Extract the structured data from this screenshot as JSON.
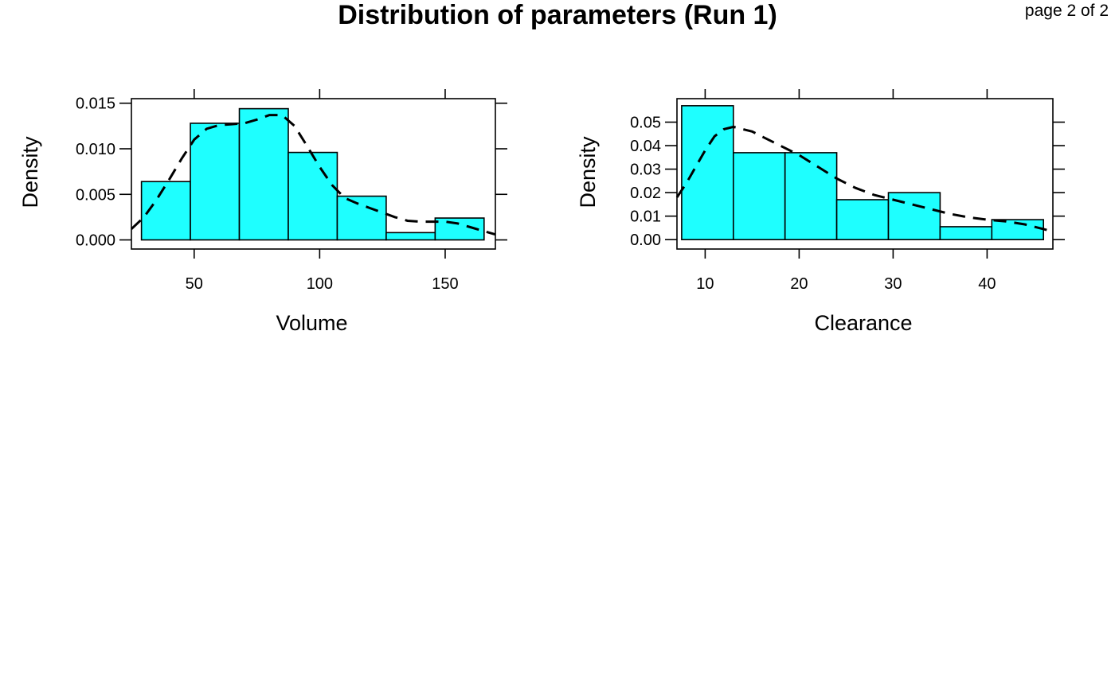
{
  "title": "Distribution of parameters (Run 1)",
  "page_label": "page 2 of 2",
  "colors": {
    "bar_fill": "#1EFFFF",
    "line": "#000000"
  },
  "chart_data": [
    {
      "type": "bar",
      "subtype": "histogram-with-density",
      "xlabel": "Volume",
      "ylabel": "Density",
      "xlim": [
        25,
        170
      ],
      "ylim": [
        -0.001,
        0.0155
      ],
      "xticks": [
        50,
        100,
        150
      ],
      "xtick_labels": [
        "50",
        "100",
        "150"
      ],
      "yticks": [
        0,
        0.005,
        0.01,
        0.015
      ],
      "ytick_labels": [
        "0.000",
        "0.005",
        "0.010",
        "0.015"
      ],
      "bins": [
        {
          "x0": 29,
          "x1": 48.5,
          "value": 0.0064
        },
        {
          "x0": 48.5,
          "x1": 68,
          "value": 0.0128
        },
        {
          "x0": 68,
          "x1": 87.5,
          "value": 0.0144
        },
        {
          "x0": 87.5,
          "x1": 107,
          "value": 0.0096
        },
        {
          "x0": 107,
          "x1": 126.5,
          "value": 0.0048
        },
        {
          "x0": 126.5,
          "x1": 146,
          "value": 0.0008
        },
        {
          "x0": 146,
          "x1": 165.5,
          "value": 0.0024
        }
      ],
      "density": {
        "x": [
          25,
          30,
          35,
          40,
          45,
          50,
          55,
          60,
          65,
          70,
          75,
          80,
          85,
          90,
          95,
          100,
          105,
          110,
          115,
          120,
          125,
          130,
          135,
          140,
          145,
          150,
          155,
          160,
          165,
          170
        ],
        "y": [
          0.0012,
          0.0025,
          0.0044,
          0.0066,
          0.0089,
          0.011,
          0.0122,
          0.0126,
          0.0127,
          0.0128,
          0.0132,
          0.0137,
          0.0137,
          0.0125,
          0.0103,
          0.008,
          0.006,
          0.0046,
          0.004,
          0.0035,
          0.003,
          0.0025,
          0.0021,
          0.002,
          0.002,
          0.002,
          0.0018,
          0.0014,
          0.001,
          0.0006
        ]
      },
      "grid": false
    },
    {
      "type": "bar",
      "subtype": "histogram-with-density",
      "xlabel": "Clearance",
      "ylabel": "Density",
      "xlim": [
        7,
        47
      ],
      "ylim": [
        -0.004,
        0.06
      ],
      "xticks": [
        10,
        20,
        30,
        40
      ],
      "xtick_labels": [
        "10",
        "20",
        "30",
        "40"
      ],
      "yticks": [
        0,
        0.01,
        0.02,
        0.03,
        0.04,
        0.05
      ],
      "ytick_labels": [
        "0.00",
        "0.01",
        "0.02",
        "0.03",
        "0.04",
        "0.05"
      ],
      "bins": [
        {
          "x0": 7.5,
          "x1": 13,
          "value": 0.057
        },
        {
          "x0": 13,
          "x1": 18.5,
          "value": 0.037
        },
        {
          "x0": 18.5,
          "x1": 24,
          "value": 0.037
        },
        {
          "x0": 24,
          "x1": 29.5,
          "value": 0.017
        },
        {
          "x0": 29.5,
          "x1": 35,
          "value": 0.02
        },
        {
          "x0": 35,
          "x1": 40.5,
          "value": 0.0055
        },
        {
          "x0": 40.5,
          "x1": 46,
          "value": 0.0085
        }
      ],
      "density": {
        "x": [
          7,
          8,
          9,
          10,
          11,
          12,
          13,
          14,
          15,
          16,
          17,
          18,
          19,
          20,
          22,
          24,
          26,
          28,
          30,
          32,
          34,
          36,
          38,
          40,
          42,
          44,
          46,
          47
        ],
        "y": [
          0.018,
          0.024,
          0.031,
          0.038,
          0.044,
          0.047,
          0.048,
          0.047,
          0.046,
          0.044,
          0.042,
          0.04,
          0.038,
          0.036,
          0.031,
          0.026,
          0.022,
          0.019,
          0.017,
          0.015,
          0.013,
          0.011,
          0.0095,
          0.0085,
          0.0078,
          0.0065,
          0.0045,
          0.0033
        ]
      },
      "grid": false
    }
  ]
}
